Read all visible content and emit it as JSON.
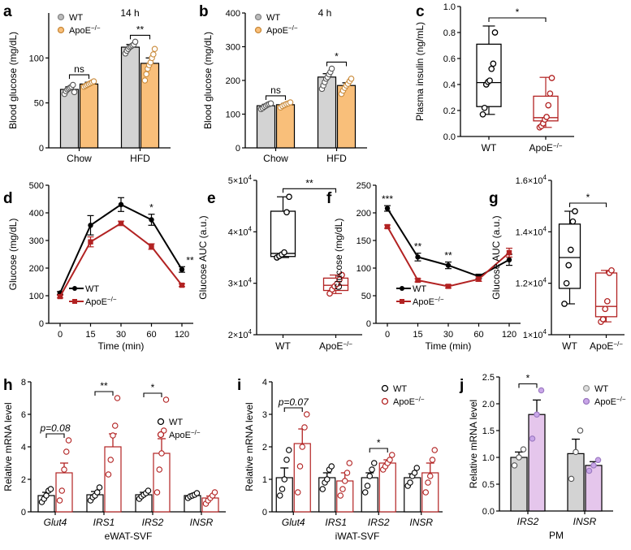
{
  "colors": {
    "wt_fill": "#d3d3d3",
    "apoe_fill_orange": "#f9bf7a",
    "apoe_red": "#b22222",
    "apoe_fill_purple": "#e5c6ec",
    "purple_dot": "#c9a6e8",
    "wt_line": "#000000"
  },
  "chart_data": [
    {
      "panel": "a",
      "type": "bar",
      "title": "14 h",
      "ylabel": "Blood glucose (mg/dL)",
      "ylim": [
        0,
        150
      ],
      "yticks": [
        0,
        50,
        100
      ],
      "categories": [
        "Chow",
        "HFD"
      ],
      "series": [
        {
          "name": "WT",
          "values": [
            65,
            112
          ],
          "sem": [
            3,
            3
          ],
          "points": [
            [
              60,
              63,
              65,
              66,
              67,
              68,
              70,
              62
            ],
            [
              105,
              108,
              110,
              112,
              113,
              114,
              115,
              118
            ]
          ]
        },
        {
          "name": "ApoE⁻/⁻",
          "values": [
            71,
            94
          ],
          "sem": [
            2,
            6
          ],
          "points": [
            [
              68,
              69,
              70,
              71,
              72,
              73,
              74
            ],
            [
              75,
              82,
              88,
              92,
              95,
              100,
              104,
              110
            ]
          ]
        }
      ],
      "legend": [
        "WT",
        "ApoE⁻/⁻"
      ],
      "annotations": [
        {
          "text": "ns",
          "group": 0
        },
        {
          "text": "**",
          "group": 1
        }
      ]
    },
    {
      "panel": "b",
      "type": "bar",
      "title": "4 h",
      "ylabel": "Blood glucose (mg/dL)",
      "ylim": [
        0,
        400
      ],
      "yticks": [
        0,
        100,
        200,
        300,
        400
      ],
      "categories": [
        "Chow",
        "HFD"
      ],
      "series": [
        {
          "name": "WT",
          "values": [
            125,
            210
          ],
          "sem": [
            4,
            10
          ],
          "points": [
            [
              115,
              118,
              122,
              125,
              128,
              130,
              132
            ],
            [
              175,
              185,
              195,
              205,
              210,
              218,
              225,
              235
            ]
          ]
        },
        {
          "name": "ApoE⁻/⁻",
          "values": [
            128,
            185
          ],
          "sem": [
            4,
            8
          ],
          "points": [
            [
              120,
              124,
              127,
              130,
              132,
              135
            ],
            [
              160,
              170,
              178,
              185,
              190,
              198,
              205
            ]
          ]
        }
      ],
      "legend": [
        "WT",
        "ApoE⁻/⁻"
      ],
      "annotations": [
        {
          "text": "ns",
          "group": 0
        },
        {
          "text": "*",
          "group": 1
        }
      ]
    },
    {
      "panel": "c",
      "type": "box",
      "ylabel": "Plasma insulin (ng/mL)",
      "ylim": [
        0,
        1.0
      ],
      "yticks": [
        "0.0",
        "0.2",
        "0.4",
        "0.6",
        "0.8",
        "1.0"
      ],
      "categories": [
        "WT",
        "ApoE⁻/⁻"
      ],
      "boxes": [
        {
          "min": 0.17,
          "q1": 0.23,
          "median": 0.415,
          "q3": 0.71,
          "max": 0.85,
          "points": [
            0.17,
            0.22,
            0.4,
            0.42,
            0.43,
            0.52,
            0.56,
            0.8
          ]
        },
        {
          "min": 0.07,
          "q1": 0.12,
          "median": 0.145,
          "q3": 0.31,
          "max": 0.455,
          "points": [
            0.07,
            0.08,
            0.1,
            0.13,
            0.15,
            0.24,
            0.33,
            0.45
          ]
        }
      ],
      "annotations": [
        {
          "text": "*"
        }
      ]
    },
    {
      "panel": "d",
      "type": "line",
      "xlabel": "Time (min)",
      "ylabel": "Glucose (mg/dL)",
      "ylim": [
        0,
        500
      ],
      "yticks": [
        0,
        100,
        200,
        300,
        400,
        500
      ],
      "x": [
        "0",
        "15",
        "30",
        "60",
        "120"
      ],
      "series": [
        {
          "name": "WT",
          "values": [
            110,
            355,
            430,
            375,
            195
          ],
          "sem": [
            5,
            35,
            25,
            20,
            10
          ]
        },
        {
          "name": "ApoE⁻/⁻",
          "values": [
            97,
            295,
            362,
            278,
            138
          ],
          "sem": [
            5,
            18,
            8,
            10,
            5
          ]
        }
      ],
      "legend": [
        "WT",
        "ApoE⁻/⁻"
      ],
      "annotations": [
        {
          "text": "*",
          "x_index": 3
        },
        {
          "text": "**",
          "x_index": 4
        }
      ]
    },
    {
      "panel": "e",
      "type": "box",
      "ylabel": "Glucose AUC (a.u.)",
      "ylim": [
        20000,
        50000
      ],
      "yticks": [
        "2×10⁴",
        "3×10⁴",
        "4×10⁴",
        "5×10⁴"
      ],
      "categories": [
        "WT",
        "ApoE⁻/⁻"
      ],
      "boxes": [
        {
          "min": 35000,
          "q1": 35200,
          "median": 35800,
          "q3": 44000,
          "max": 46800,
          "points": [
            35000,
            35300,
            35600,
            36000,
            43800,
            46800
          ]
        },
        {
          "min": 28000,
          "q1": 28600,
          "median": 29600,
          "q3": 31000,
          "max": 31600,
          "points": [
            28000,
            28800,
            29400,
            29900,
            30700,
            31600
          ]
        }
      ],
      "annotations": [
        {
          "text": "**"
        }
      ]
    },
    {
      "panel": "f",
      "type": "line",
      "xlabel": "Time (min)",
      "ylabel": "Glucose (mg/dL)",
      "ylim": [
        0,
        250
      ],
      "yticks": [
        0,
        50,
        100,
        150,
        200,
        250
      ],
      "x": [
        "0",
        "15",
        "30",
        "60",
        "120"
      ],
      "series": [
        {
          "name": "WT",
          "values": [
            208,
            120,
            105,
            85,
            115
          ],
          "sem": [
            5,
            7,
            6,
            4,
            10
          ]
        },
        {
          "name": "ApoE⁻/⁻",
          "values": [
            175,
            78,
            67,
            80,
            128
          ],
          "sem": [
            3,
            3,
            3,
            4,
            8
          ]
        }
      ],
      "legend": [
        "WT",
        "ApoE⁻/⁻"
      ],
      "annotations": [
        {
          "text": "***",
          "x_index": 0
        },
        {
          "text": "**",
          "x_index": 1
        },
        {
          "text": "**",
          "x_index": 2
        }
      ]
    },
    {
      "panel": "g",
      "type": "box",
      "ylabel": "Glucose AUC (a.u.)",
      "ylim": [
        10000,
        16000
      ],
      "yticks": [
        "1×10⁴",
        "1.2×10⁴",
        "1.4×10⁴",
        "1.6×10⁴"
      ],
      "categories": [
        "WT",
        "ApoE⁻/⁻"
      ],
      "boxes": [
        {
          "min": 11200,
          "q1": 11800,
          "median": 13000,
          "q3": 14300,
          "max": 14800,
          "points": [
            11200,
            12000,
            12700,
            13300,
            14400,
            14800
          ]
        },
        {
          "min": 10500,
          "q1": 10700,
          "median": 11100,
          "q3": 12400,
          "max": 12500,
          "points": [
            10500,
            10600,
            11000,
            11300,
            12400,
            12500
          ]
        }
      ],
      "annotations": [
        {
          "text": "*"
        }
      ]
    },
    {
      "panel": "h",
      "type": "bar",
      "xlabel": "eWAT-SVF",
      "ylabel": "Relative mRNA level",
      "ylim": [
        0,
        8
      ],
      "yticks": [
        0,
        2,
        4,
        6,
        8
      ],
      "categories": [
        "Glut4",
        "IRS1",
        "IRS2",
        "INSR"
      ],
      "series": [
        {
          "name": "WT",
          "values": [
            1.0,
            1.05,
            1.05,
            1.0
          ],
          "sem": [
            0.2,
            0.2,
            0.15,
            0.08
          ],
          "points": [
            [
              0.6,
              0.8,
              1.0,
              1.3,
              1.4
            ],
            [
              0.7,
              0.9,
              1.0,
              1.2,
              1.5
            ],
            [
              0.8,
              0.95,
              1.05,
              1.15,
              1.3
            ],
            [
              0.85,
              0.95,
              1.0,
              1.05,
              1.15
            ]
          ]
        },
        {
          "name": "ApoE⁻/⁻",
          "values": [
            2.4,
            4.0,
            3.6,
            0.85
          ],
          "sem": [
            0.6,
            0.8,
            0.9,
            0.12
          ],
          "points": [
            [
              0.7,
              1.3,
              2.6,
              3.7,
              4.4
            ],
            [
              2.3,
              3.2,
              4.7,
              5.3,
              7.0
            ],
            [
              1.2,
              2.6,
              3.6,
              5.0,
              6.9
            ],
            [
              0.5,
              0.7,
              0.85,
              1.0,
              1.2
            ]
          ]
        }
      ],
      "legend": [
        "WT",
        "ApoE⁻/⁻"
      ],
      "annotations": [
        {
          "text": "p=0.08",
          "group": 0
        },
        {
          "text": "**",
          "group": 1
        },
        {
          "text": "*",
          "group": 2
        }
      ]
    },
    {
      "panel": "i",
      "type": "bar",
      "xlabel": "iWAT-SVF",
      "ylabel": "Relative mRNA level",
      "ylim": [
        0,
        4
      ],
      "yticks": [
        0,
        1,
        2,
        3,
        4
      ],
      "categories": [
        "Glut4",
        "IRS1",
        "IRS2",
        "INSR"
      ],
      "series": [
        {
          "name": "WT",
          "values": [
            1.05,
            1.05,
            1.05,
            1.05
          ],
          "sem": [
            0.3,
            0.15,
            0.15,
            0.12
          ],
          "points": [
            [
              0.5,
              0.7,
              1.0,
              1.6,
              1.9
            ],
            [
              0.7,
              0.9,
              1.0,
              1.3,
              1.4
            ],
            [
              0.6,
              0.8,
              1.1,
              1.3,
              1.5
            ],
            [
              0.8,
              0.9,
              1.1,
              1.2,
              1.35
            ]
          ]
        },
        {
          "name": "ApoE⁻/⁻",
          "values": [
            2.1,
            0.95,
            1.5,
            1.2
          ],
          "sem": [
            0.45,
            0.25,
            0.1,
            0.3
          ],
          "points": [
            [
              0.6,
              1.4,
              2.0,
              2.6,
              3.0
            ],
            [
              0.5,
              0.7,
              0.95,
              1.2,
              1.5
            ],
            [
              1.3,
              1.4,
              1.5,
              1.6,
              1.75
            ],
            [
              0.6,
              0.9,
              1.1,
              1.6,
              1.9
            ]
          ]
        }
      ],
      "legend": [
        "WT",
        "ApoE⁻/⁻"
      ],
      "annotations": [
        {
          "text": "p=0.07",
          "group": 0
        },
        {
          "text": "*",
          "group": 2
        }
      ]
    },
    {
      "panel": "j",
      "type": "bar",
      "xlabel": "PM",
      "ylabel": "Relative mRNA level",
      "ylim": [
        0,
        2.5
      ],
      "yticks": [
        "0.0",
        "0.5",
        "1.0",
        "1.5",
        "2.0",
        "2.5"
      ],
      "categories": [
        "IRS2",
        "INSR"
      ],
      "series": [
        {
          "name": "WT",
          "values": [
            1.0,
            1.07
          ],
          "sem": [
            0.1,
            0.27
          ],
          "points": [
            [
              0.85,
              1.0,
              1.15
            ],
            [
              0.6,
              1.1,
              1.5
            ]
          ]
        },
        {
          "name": "ApoE⁻/⁻",
          "values": [
            1.8,
            0.85
          ],
          "sem": [
            0.27,
            0.07
          ],
          "points": [
            [
              1.35,
              1.8,
              2.25
            ],
            [
              0.75,
              0.85,
              0.95
            ]
          ]
        }
      ],
      "legend": [
        "WT",
        "ApoE⁻/⁻"
      ],
      "annotations": [
        {
          "text": "*",
          "group": 0
        }
      ]
    }
  ]
}
